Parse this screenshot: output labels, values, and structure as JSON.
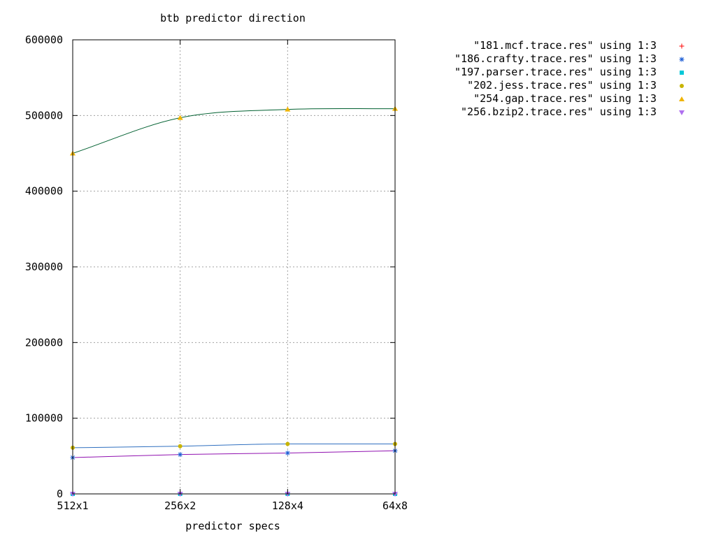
{
  "chart_data": {
    "type": "line",
    "title": "btb predictor direction",
    "xlabel": "predictor specs",
    "ylabel": "",
    "categories": [
      "512x1",
      "256x2",
      "128x4",
      "64x8"
    ],
    "ylim": [
      0,
      600000
    ],
    "yticks": [
      "0",
      "100000",
      "200000",
      "300000",
      "400000",
      "500000",
      "600000"
    ],
    "grid": true,
    "legend_position": "top-right outside",
    "series": [
      {
        "name": "\"181.mcf.trace.res\" using 1:3",
        "values": [
          0,
          0,
          0,
          0
        ],
        "color": "#ff0000",
        "marker": "plus"
      },
      {
        "name": "\"186.crafty.trace.res\" using 1:3",
        "values": [
          48000,
          52000,
          54000,
          57000
        ],
        "color": "#1f5fd6",
        "marker": "star"
      },
      {
        "name": "\"197.parser.trace.res\" using 1:3",
        "values": [
          0,
          0,
          0,
          0
        ],
        "color": "#00c8d8",
        "marker": "square"
      },
      {
        "name": "\"202.jess.trace.res\" using 1:3",
        "values": [
          61000,
          63000,
          66000,
          66000
        ],
        "color": "#c8b400",
        "marker": "circle"
      },
      {
        "name": "\"254.gap.trace.res\" using 1:3",
        "values": [
          450000,
          497000,
          508000,
          509000
        ],
        "color": "#f0b400",
        "marker": "triangle-up"
      },
      {
        "name": "\"256.bzip2.trace.res\" using 1:3",
        "values": [
          0,
          0,
          0,
          0
        ],
        "color": "#b070f0",
        "marker": "triangle-down"
      }
    ],
    "curves": [
      {
        "values": [
          450000,
          497000,
          508000,
          509000
        ],
        "color": "#006030"
      },
      {
        "values": [
          61000,
          63000,
          66000,
          66000
        ],
        "color": "#3070c0"
      },
      {
        "values": [
          48000,
          52000,
          54000,
          57000
        ],
        "color": "#9010b0"
      }
    ]
  }
}
